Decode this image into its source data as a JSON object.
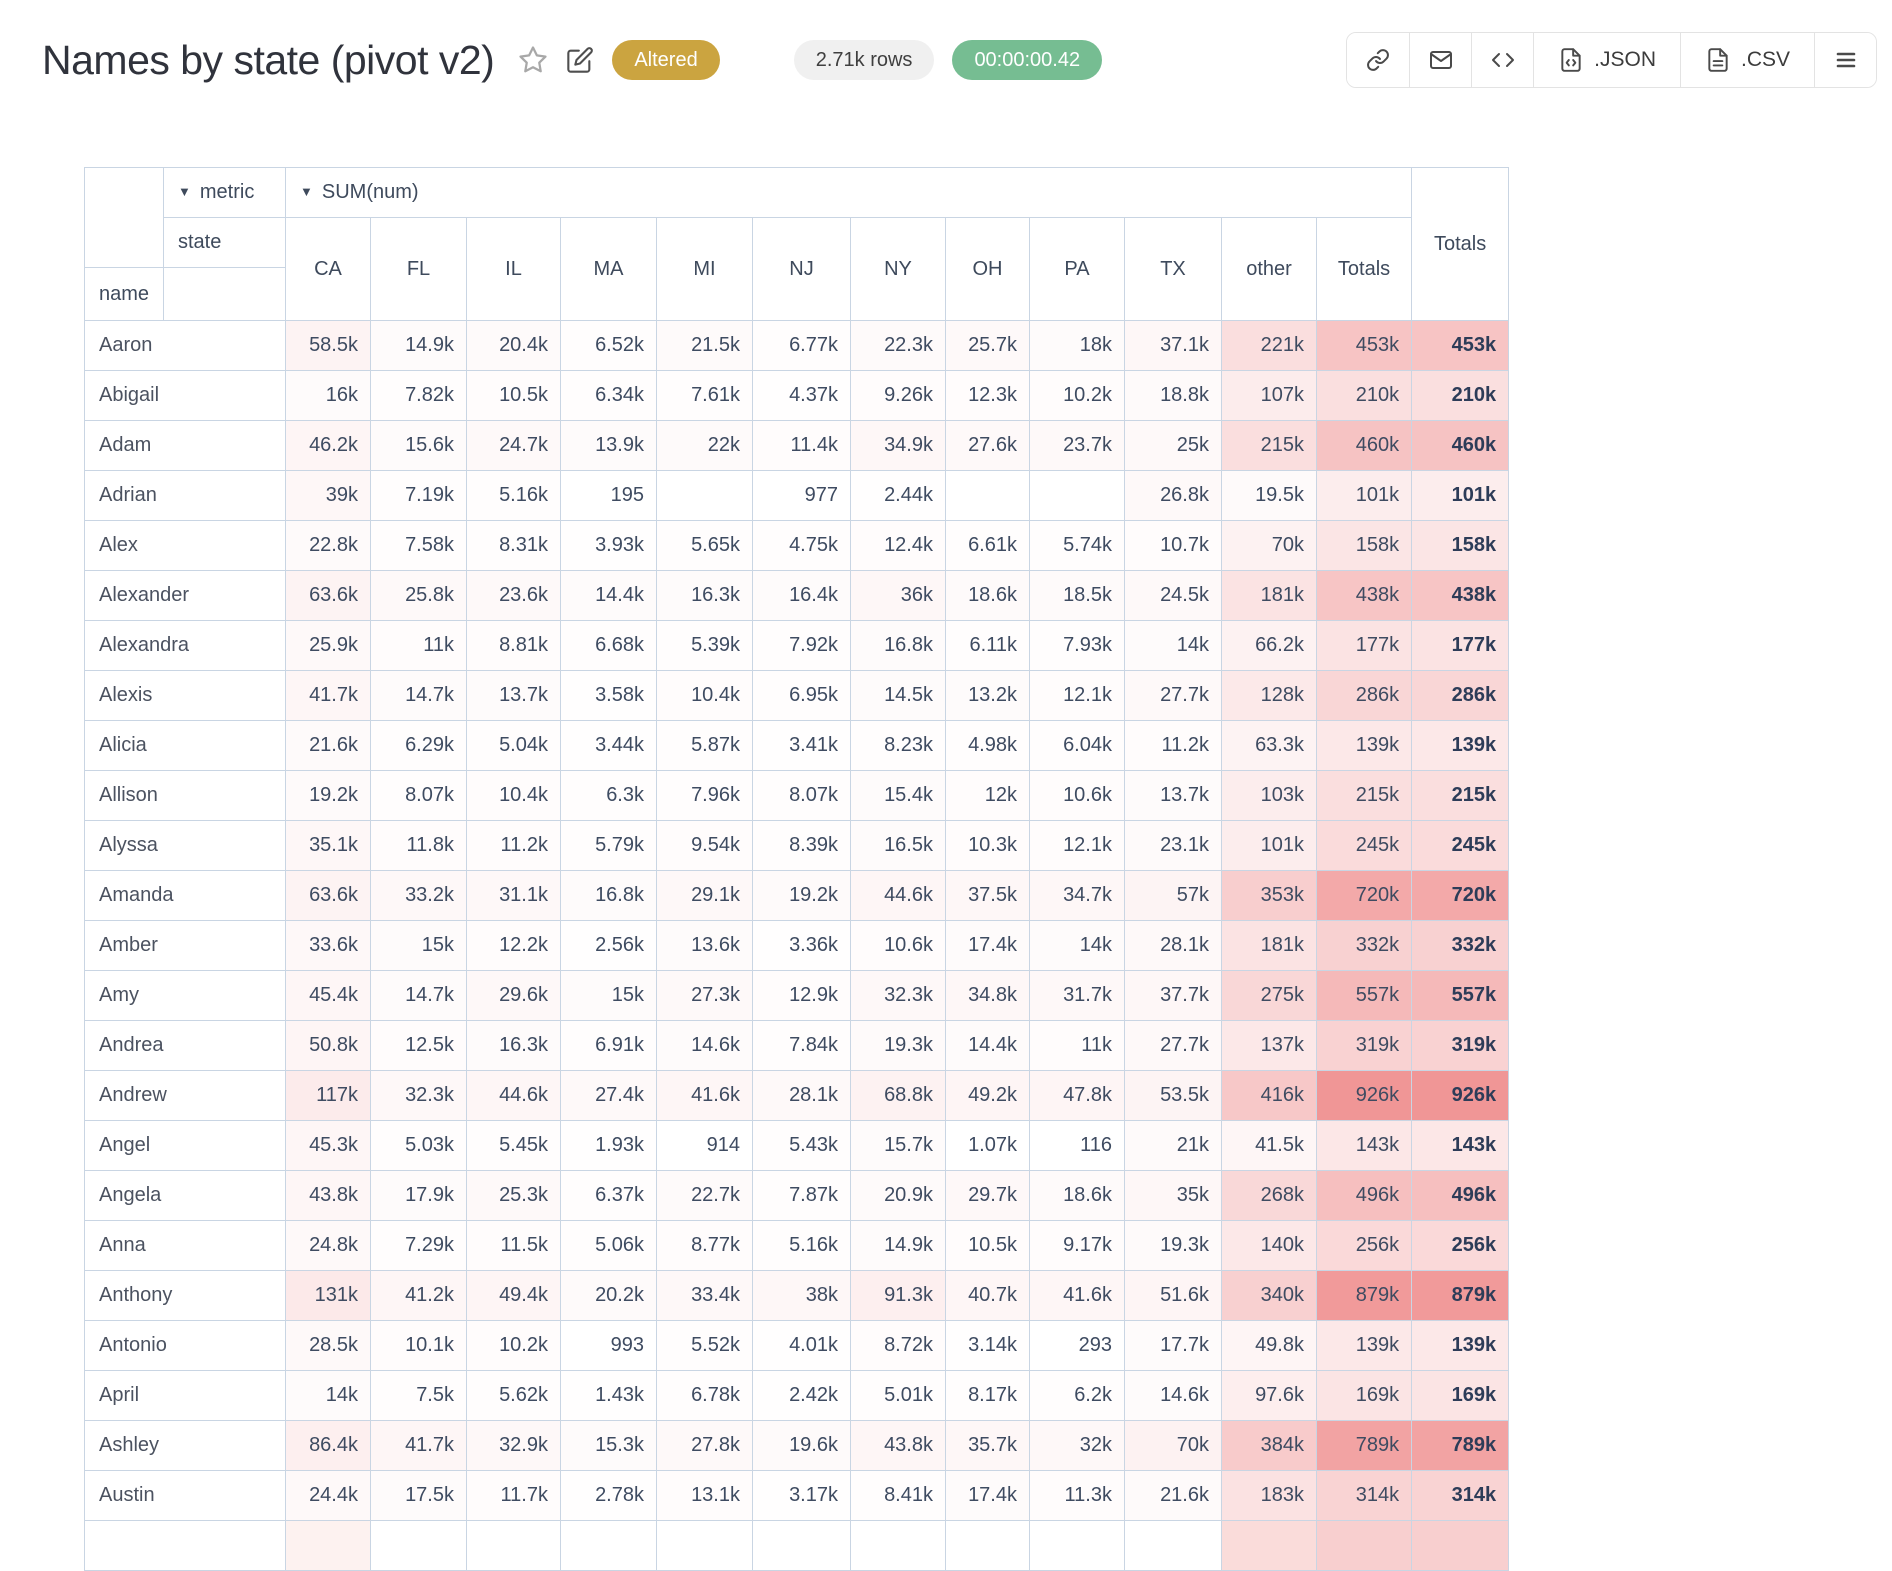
{
  "header": {
    "title": "Names by state (pivot v2)",
    "status_badge": "Altered",
    "row_count": "2.71k rows",
    "duration": "00:00:00.42"
  },
  "toolbar": {
    "json_label": ".JSON",
    "csv_label": ".CSV"
  },
  "icons": {
    "favorite": "star-outline",
    "edit": "pencil-square",
    "share": "link",
    "email": "envelope",
    "embed": "code-brackets",
    "json": "file-code",
    "csv": "file-text",
    "menu": "hamburger"
  },
  "colors": {
    "altered_bg": "#cba440",
    "duration_bg": "#76bd92",
    "rows_pill_bg": "#f0f0f0",
    "table_border": "#c9d5e3",
    "heat_max": "#f09696",
    "value_text": "#3e4b61",
    "grand_text": "#2d3c58"
  },
  "table": {
    "filter_arrow": "▼",
    "metric_attr": "metric",
    "metric_value": "SUM(num)",
    "state_attr": "state",
    "row_attr": "name",
    "grand_totals_label": "Totals",
    "columns": [
      "CA",
      "FL",
      "IL",
      "MA",
      "MI",
      "NJ",
      "NY",
      "OH",
      "PA",
      "TX",
      "other",
      "Totals"
    ],
    "rows": [
      {
        "name": "Aaron",
        "cells": [
          "58.5k",
          "14.9k",
          "20.4k",
          "6.52k",
          "21.5k",
          "6.77k",
          "22.3k",
          "25.7k",
          "18k",
          "37.1k",
          "221k",
          "453k"
        ],
        "grand": "453k"
      },
      {
        "name": "Abigail",
        "cells": [
          "16k",
          "7.82k",
          "10.5k",
          "6.34k",
          "7.61k",
          "4.37k",
          "9.26k",
          "12.3k",
          "10.2k",
          "18.8k",
          "107k",
          "210k"
        ],
        "grand": "210k"
      },
      {
        "name": "Adam",
        "cells": [
          "46.2k",
          "15.6k",
          "24.7k",
          "13.9k",
          "22k",
          "11.4k",
          "34.9k",
          "27.6k",
          "23.7k",
          "25k",
          "215k",
          "460k"
        ],
        "grand": "460k"
      },
      {
        "name": "Adrian",
        "cells": [
          "39k",
          "7.19k",
          "5.16k",
          "195",
          "",
          "977",
          "2.44k",
          "",
          "",
          "26.8k",
          "19.5k",
          "101k"
        ],
        "grand": "101k"
      },
      {
        "name": "Alex",
        "cells": [
          "22.8k",
          "7.58k",
          "8.31k",
          "3.93k",
          "5.65k",
          "4.75k",
          "12.4k",
          "6.61k",
          "5.74k",
          "10.7k",
          "70k",
          "158k"
        ],
        "grand": "158k"
      },
      {
        "name": "Alexander",
        "cells": [
          "63.6k",
          "25.8k",
          "23.6k",
          "14.4k",
          "16.3k",
          "16.4k",
          "36k",
          "18.6k",
          "18.5k",
          "24.5k",
          "181k",
          "438k"
        ],
        "grand": "438k"
      },
      {
        "name": "Alexandra",
        "cells": [
          "25.9k",
          "11k",
          "8.81k",
          "6.68k",
          "5.39k",
          "7.92k",
          "16.8k",
          "6.11k",
          "7.93k",
          "14k",
          "66.2k",
          "177k"
        ],
        "grand": "177k"
      },
      {
        "name": "Alexis",
        "cells": [
          "41.7k",
          "14.7k",
          "13.7k",
          "3.58k",
          "10.4k",
          "6.95k",
          "14.5k",
          "13.2k",
          "12.1k",
          "27.7k",
          "128k",
          "286k"
        ],
        "grand": "286k"
      },
      {
        "name": "Alicia",
        "cells": [
          "21.6k",
          "6.29k",
          "5.04k",
          "3.44k",
          "5.87k",
          "3.41k",
          "8.23k",
          "4.98k",
          "6.04k",
          "11.2k",
          "63.3k",
          "139k"
        ],
        "grand": "139k"
      },
      {
        "name": "Allison",
        "cells": [
          "19.2k",
          "8.07k",
          "10.4k",
          "6.3k",
          "7.96k",
          "8.07k",
          "15.4k",
          "12k",
          "10.6k",
          "13.7k",
          "103k",
          "215k"
        ],
        "grand": "215k"
      },
      {
        "name": "Alyssa",
        "cells": [
          "35.1k",
          "11.8k",
          "11.2k",
          "5.79k",
          "9.54k",
          "8.39k",
          "16.5k",
          "10.3k",
          "12.1k",
          "23.1k",
          "101k",
          "245k"
        ],
        "grand": "245k"
      },
      {
        "name": "Amanda",
        "cells": [
          "63.6k",
          "33.2k",
          "31.1k",
          "16.8k",
          "29.1k",
          "19.2k",
          "44.6k",
          "37.5k",
          "34.7k",
          "57k",
          "353k",
          "720k"
        ],
        "grand": "720k"
      },
      {
        "name": "Amber",
        "cells": [
          "33.6k",
          "15k",
          "12.2k",
          "2.56k",
          "13.6k",
          "3.36k",
          "10.6k",
          "17.4k",
          "14k",
          "28.1k",
          "181k",
          "332k"
        ],
        "grand": "332k"
      },
      {
        "name": "Amy",
        "cells": [
          "45.4k",
          "14.7k",
          "29.6k",
          "15k",
          "27.3k",
          "12.9k",
          "32.3k",
          "34.8k",
          "31.7k",
          "37.7k",
          "275k",
          "557k"
        ],
        "grand": "557k"
      },
      {
        "name": "Andrea",
        "cells": [
          "50.8k",
          "12.5k",
          "16.3k",
          "6.91k",
          "14.6k",
          "7.84k",
          "19.3k",
          "14.4k",
          "11k",
          "27.7k",
          "137k",
          "319k"
        ],
        "grand": "319k"
      },
      {
        "name": "Andrew",
        "cells": [
          "117k",
          "32.3k",
          "44.6k",
          "27.4k",
          "41.6k",
          "28.1k",
          "68.8k",
          "49.2k",
          "47.8k",
          "53.5k",
          "416k",
          "926k"
        ],
        "grand": "926k"
      },
      {
        "name": "Angel",
        "cells": [
          "45.3k",
          "5.03k",
          "5.45k",
          "1.93k",
          "914",
          "5.43k",
          "15.7k",
          "1.07k",
          "116",
          "21k",
          "41.5k",
          "143k"
        ],
        "grand": "143k"
      },
      {
        "name": "Angela",
        "cells": [
          "43.8k",
          "17.9k",
          "25.3k",
          "6.37k",
          "22.7k",
          "7.87k",
          "20.9k",
          "29.7k",
          "18.6k",
          "35k",
          "268k",
          "496k"
        ],
        "grand": "496k"
      },
      {
        "name": "Anna",
        "cells": [
          "24.8k",
          "7.29k",
          "11.5k",
          "5.06k",
          "8.77k",
          "5.16k",
          "14.9k",
          "10.5k",
          "9.17k",
          "19.3k",
          "140k",
          "256k"
        ],
        "grand": "256k"
      },
      {
        "name": "Anthony",
        "cells": [
          "131k",
          "41.2k",
          "49.4k",
          "20.2k",
          "33.4k",
          "38k",
          "91.3k",
          "40.7k",
          "41.6k",
          "51.6k",
          "340k",
          "879k"
        ],
        "grand": "879k"
      },
      {
        "name": "Antonio",
        "cells": [
          "28.5k",
          "10.1k",
          "10.2k",
          "993",
          "5.52k",
          "4.01k",
          "8.72k",
          "3.14k",
          "293",
          "17.7k",
          "49.8k",
          "139k"
        ],
        "grand": "139k"
      },
      {
        "name": "April",
        "cells": [
          "14k",
          "7.5k",
          "5.62k",
          "1.43k",
          "6.78k",
          "2.42k",
          "5.01k",
          "8.17k",
          "6.2k",
          "14.6k",
          "97.6k",
          "169k"
        ],
        "grand": "169k"
      },
      {
        "name": "Ashley",
        "cells": [
          "86.4k",
          "41.7k",
          "32.9k",
          "15.3k",
          "27.8k",
          "19.6k",
          "43.8k",
          "35.7k",
          "32k",
          "70k",
          "384k",
          "789k"
        ],
        "grand": "789k"
      },
      {
        "name": "Austin",
        "cells": [
          "24.4k",
          "17.5k",
          "11.7k",
          "2.78k",
          "13.1k",
          "3.17k",
          "8.41k",
          "17.4k",
          "11.3k",
          "21.6k",
          "183k",
          "314k"
        ],
        "grand": "314k"
      }
    ],
    "partial_next_row": {
      "cell_tints": [
        "#fdf2f0",
        "",
        "",
        "",
        "",
        "",
        "",
        "",
        "",
        "",
        "#fadcda",
        "#f8cfcf",
        "#f8cfcf"
      ]
    }
  }
}
